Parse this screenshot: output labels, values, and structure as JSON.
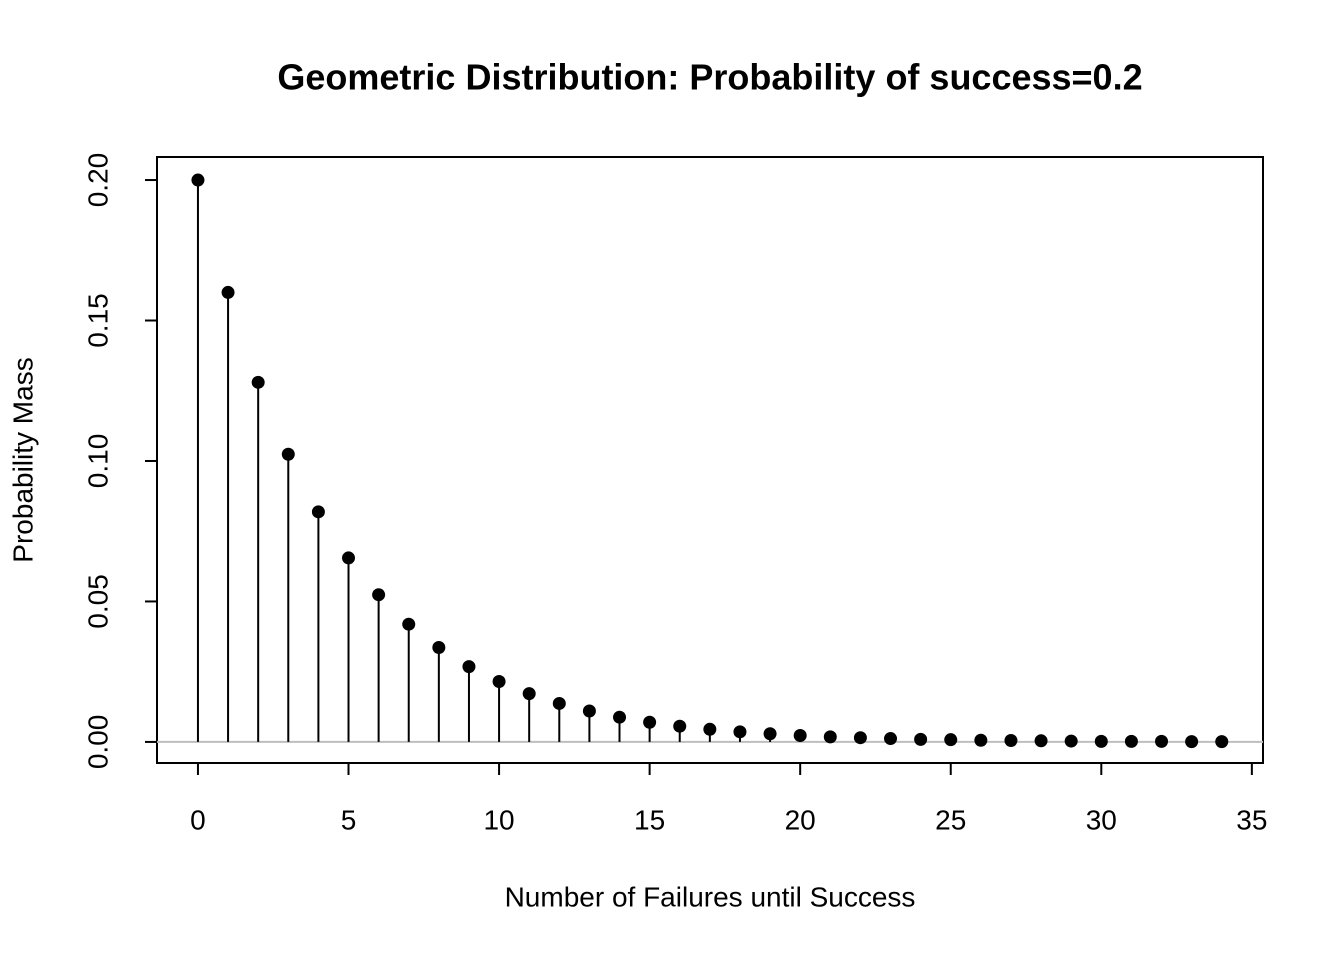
{
  "chart_data": {
    "type": "stem",
    "title": "Geometric Distribution:  Probability of success=0.2",
    "x_label": "Number of Failures until Success",
    "y_label": "Probability Mass",
    "x": [
      0,
      1,
      2,
      3,
      4,
      5,
      6,
      7,
      8,
      9,
      10,
      11,
      12,
      13,
      14,
      15,
      16,
      17,
      18,
      19,
      20,
      21,
      22,
      23,
      24,
      25,
      26,
      27,
      28,
      29,
      30,
      31,
      32,
      33,
      34
    ],
    "values": [
      0.2,
      0.16,
      0.128,
      0.1024,
      0.0819,
      0.0655,
      0.0524,
      0.0419,
      0.0336,
      0.0268,
      0.0215,
      0.0172,
      0.0137,
      0.011,
      0.0088,
      0.007,
      0.0056,
      0.0045,
      0.0036,
      0.0029,
      0.0023,
      0.0018,
      0.0015,
      0.0012,
      0.0009,
      0.0008,
      0.0006,
      0.0005,
      0.0004,
      0.0003,
      0.0002,
      0.0002,
      0.0002,
      0.0001,
      0.0001
    ],
    "color": "#000000",
    "reference_line": {
      "value": 0,
      "color": "#bebebe"
    },
    "xlim": [
      -1.36,
      35.37
    ],
    "ylim": [
      -0.0075,
      0.2082
    ],
    "xticks": [
      0,
      5,
      10,
      15,
      20,
      25,
      30,
      35
    ],
    "yticks": [
      {
        "value": 0,
        "label": "0.00"
      },
      {
        "value": 0.05,
        "label": "0.05"
      },
      {
        "value": 0.1,
        "label": "0.10"
      },
      {
        "value": 0.15,
        "label": "0.15"
      },
      {
        "value": 0.2,
        "label": "0.20"
      }
    ]
  }
}
